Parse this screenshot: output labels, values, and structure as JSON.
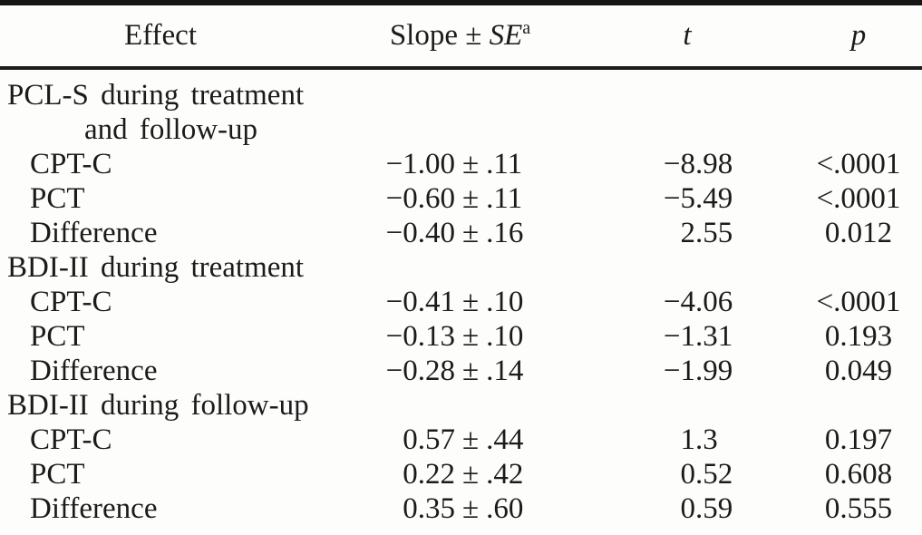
{
  "symbols": {
    "pm": "±"
  },
  "header": {
    "effect": "Effect",
    "slope_label": "Slope ±",
    "se_label": "SE",
    "se_footnote_mark": "a",
    "t": "t",
    "p": "p"
  },
  "rows": [
    {
      "kind": "group",
      "label": "PCL-S during treatment"
    },
    {
      "kind": "group-continuation",
      "label": "and follow-up"
    },
    {
      "kind": "data",
      "label": "CPT-C",
      "slope": {
        "val": "−1.00",
        "se": ".11"
      },
      "t": {
        "i": "−8",
        "f": ".98"
      },
      "p": "<.0001"
    },
    {
      "kind": "data",
      "label": "PCT",
      "slope": {
        "val": "−0.60",
        "se": ".11"
      },
      "t": {
        "i": "−5",
        "f": ".49"
      },
      "p": "<.0001"
    },
    {
      "kind": "data",
      "label": "Difference",
      "slope": {
        "val": "−0.40",
        "se": ".16"
      },
      "t": {
        "i": "2",
        "f": ".55"
      },
      "p": "0.012"
    },
    {
      "kind": "group",
      "label": "BDI-II during treatment"
    },
    {
      "kind": "data",
      "label": "CPT-C",
      "slope": {
        "val": "−0.41",
        "se": ".10"
      },
      "t": {
        "i": "−4",
        "f": ".06"
      },
      "p": "<.0001"
    },
    {
      "kind": "data",
      "label": "PCT",
      "slope": {
        "val": "−0.13",
        "se": ".10"
      },
      "t": {
        "i": "−1",
        "f": ".31"
      },
      "p": "0.193"
    },
    {
      "kind": "data",
      "label": "Difference",
      "slope": {
        "val": "−0.28",
        "se": ".14"
      },
      "t": {
        "i": "−1",
        "f": ".99"
      },
      "p": "0.049"
    },
    {
      "kind": "group",
      "label": "BDI-II during follow-up"
    },
    {
      "kind": "data",
      "label": "CPT-C",
      "slope": {
        "val": "0.57",
        "se": ".44"
      },
      "t": {
        "i": "1",
        "f": ".3"
      },
      "p": "0.197"
    },
    {
      "kind": "data",
      "label": "PCT",
      "slope": {
        "val": "0.22",
        "se": ".42"
      },
      "t": {
        "i": "0",
        "f": ".52"
      },
      "p": "0.608"
    },
    {
      "kind": "data",
      "label": "Difference",
      "slope": {
        "val": "0.35",
        "se": ".60"
      },
      "t": {
        "i": "0",
        "f": ".59"
      },
      "p": "0.555"
    }
  ]
}
